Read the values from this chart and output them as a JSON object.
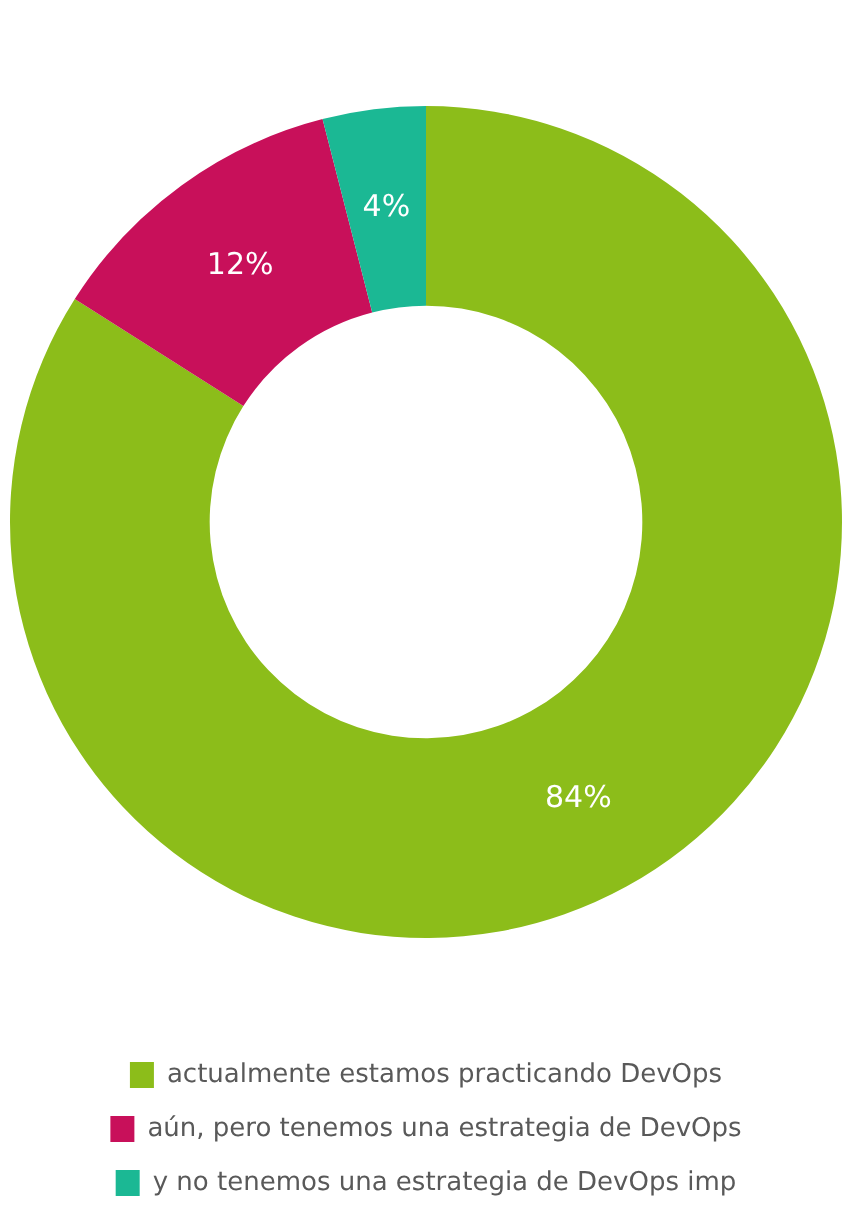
{
  "chart_data": {
    "type": "donut",
    "categories": [
      "actualmente estamos practicando DevOps",
      "aún, pero tenemos una estrategia de DevOps",
      "y no tenemos una estrategia de DevOps imp"
    ],
    "values": [
      84,
      12,
      4
    ],
    "colors": [
      "#8cbd1a",
      "#c8105a",
      "#1bb894"
    ],
    "value_labels": [
      "84%",
      "12%",
      "4%"
    ],
    "legend": "bottom"
  }
}
